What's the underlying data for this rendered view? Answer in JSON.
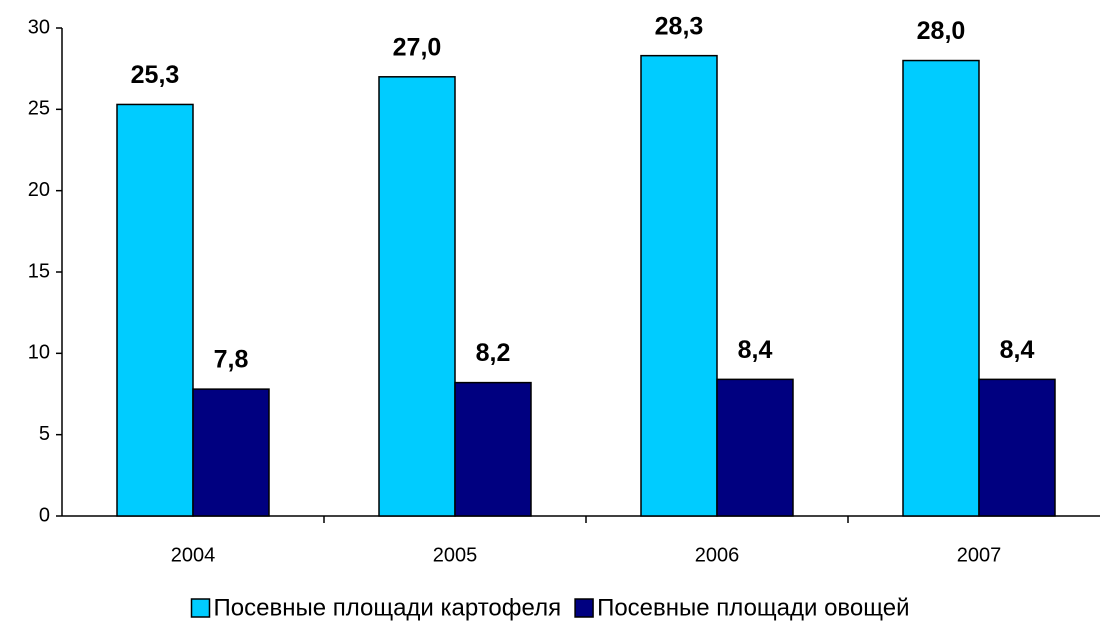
{
  "chart_data": {
    "type": "bar",
    "categories": [
      "2004",
      "2005",
      "2006",
      "2007"
    ],
    "series": [
      {
        "name": "Посевные площади картофеля",
        "color": "#00ccff",
        "values": [
          25.3,
          27.0,
          28.3,
          28.0
        ],
        "value_labels": [
          "25,3",
          "27,0",
          "28,3",
          "28,0"
        ]
      },
      {
        "name": "Посевные площади овощей",
        "color": "#000080",
        "values": [
          7.8,
          8.2,
          8.4,
          8.4
        ],
        "value_labels": [
          "7,8",
          "8,2",
          "8,4",
          "8,4"
        ]
      }
    ],
    "ylim": [
      0,
      30
    ],
    "yticks": [
      0,
      5,
      10,
      15,
      20,
      25,
      30
    ],
    "legend": "bottom"
  }
}
